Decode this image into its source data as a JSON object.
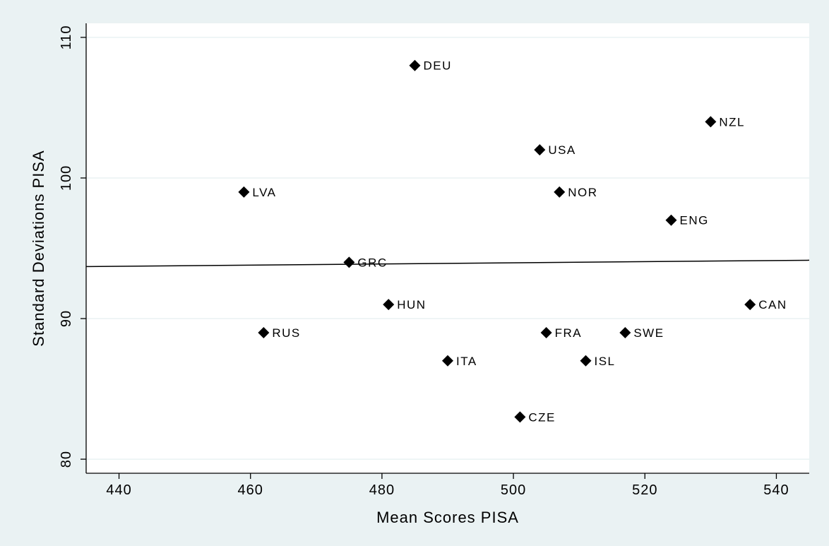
{
  "chart_data": {
    "type": "scatter",
    "title": "",
    "xlabel": "Mean Scores PISA",
    "ylabel": "Standard Deviations PISA",
    "xlim": [
      435,
      545
    ],
    "ylim": [
      79,
      111
    ],
    "xticks": [
      440,
      460,
      480,
      500,
      520,
      540
    ],
    "yticks": [
      80,
      90,
      100,
      110
    ],
    "grid": "horizontal",
    "colors": {
      "background": "#eaf2f3",
      "plot_area": "#ffffff",
      "marker": "#000000"
    },
    "marker": "diamond",
    "points": [
      {
        "label": "DEU",
        "x": 485,
        "y": 108
      },
      {
        "label": "NZL",
        "x": 530,
        "y": 104
      },
      {
        "label": "USA",
        "x": 504,
        "y": 102
      },
      {
        "label": "LVA",
        "x": 459,
        "y": 99
      },
      {
        "label": "NOR",
        "x": 507,
        "y": 99
      },
      {
        "label": "ENG",
        "x": 524,
        "y": 97
      },
      {
        "label": "GRC",
        "x": 475,
        "y": 94
      },
      {
        "label": "HUN",
        "x": 481,
        "y": 91
      },
      {
        "label": "CAN",
        "x": 536,
        "y": 91
      },
      {
        "label": "RUS",
        "x": 462,
        "y": 89
      },
      {
        "label": "FRA",
        "x": 505,
        "y": 89
      },
      {
        "label": "SWE",
        "x": 517,
        "y": 89
      },
      {
        "label": "ITA",
        "x": 490,
        "y": 87
      },
      {
        "label": "ISL",
        "x": 511,
        "y": 87
      },
      {
        "label": "CZE",
        "x": 501,
        "y": 83
      }
    ],
    "fit_line": {
      "x": [
        435,
        545
      ],
      "y": [
        93.7,
        94.15
      ]
    }
  }
}
